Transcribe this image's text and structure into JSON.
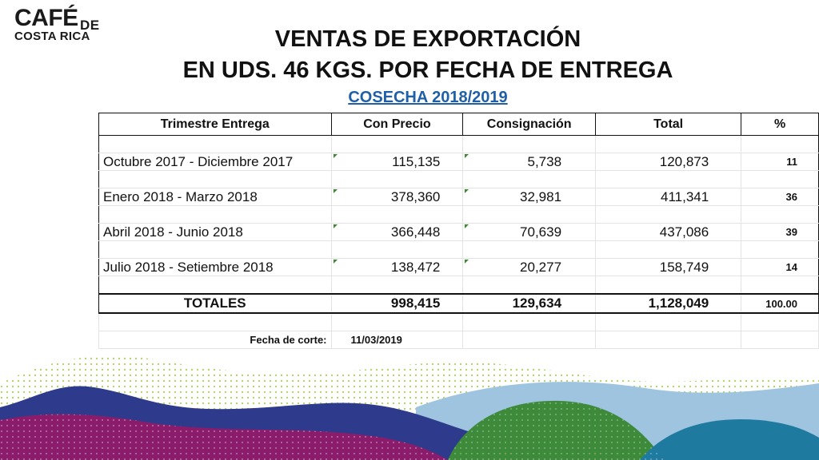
{
  "logo": {
    "line1": "CAFÉ",
    "line1b": "DE",
    "line2": "COSTA RICA"
  },
  "title": {
    "line1": "VENTAS DE EXPORTACIÓN",
    "line2": "EN UDS. 46 KGS. POR FECHA DE ENTREGA",
    "subtitle": "COSECHA 2018/2019"
  },
  "table": {
    "headers": [
      "Trimestre Entrega",
      "Con Precio",
      "Consignación",
      "Total",
      "%"
    ],
    "rows": [
      [
        "Octubre 2017 - Diciembre 2017",
        "115,135",
        "5,738",
        "120,873",
        "11"
      ],
      [
        "Enero 2018 - Marzo 2018",
        "378,360",
        "32,981",
        "411,341",
        "36"
      ],
      [
        "Abril 2018 - Junio 2018",
        "366,448",
        "70,639",
        "437,086",
        "39"
      ],
      [
        "Julio 2018 - Setiembre 2018",
        "138,472",
        "20,277",
        "158,749",
        "14"
      ]
    ],
    "totals": [
      "TOTALES",
      "998,415",
      "129,634",
      "1,128,049",
      "100.00"
    ],
    "cutoff_label": "Fecha de corte:",
    "cutoff_date": "11/03/2019"
  },
  "colors": {
    "accent_blue": "#1f5fa8",
    "purple": "#8a1c6b",
    "navy": "#2e3a8c",
    "green": "#3d8a3a",
    "teal": "#1f7aa0",
    "light_blue": "#9fc4e0",
    "lime": "#9cc443"
  }
}
